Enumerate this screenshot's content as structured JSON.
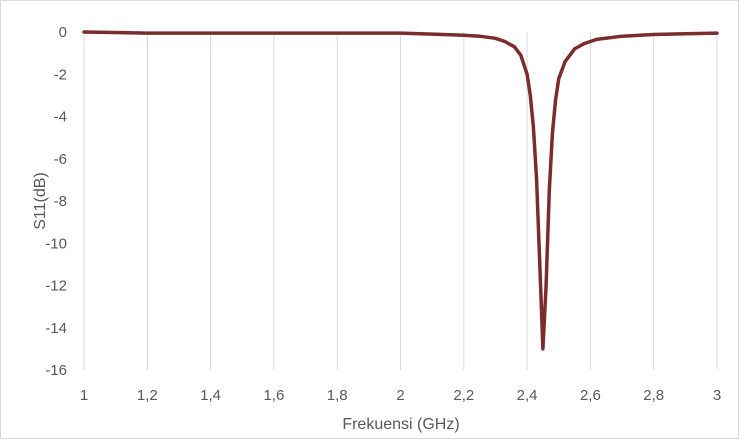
{
  "chart_data": {
    "type": "line",
    "title": "",
    "xlabel": "Frekuensi (GHz)",
    "ylabel": "S11(dB)",
    "xlim": [
      1,
      3
    ],
    "ylim": [
      -16,
      0
    ],
    "x_ticks": [
      "1",
      "1,2",
      "1,4",
      "1,6",
      "1,8",
      "2",
      "2,2",
      "2,4",
      "2,6",
      "2,8",
      "3"
    ],
    "y_ticks": [
      "0",
      "-2",
      "-4",
      "-6",
      "-8",
      "-10",
      "-12",
      "-14",
      "-16"
    ],
    "grid": "vertical",
    "legend": "none",
    "series": [
      {
        "color": "#7b2c2c",
        "x": [
          1.0,
          1.2,
          1.4,
          1.6,
          1.8,
          2.0,
          2.1,
          2.2,
          2.25,
          2.3,
          2.33,
          2.36,
          2.38,
          2.4,
          2.41,
          2.42,
          2.43,
          2.44,
          2.45,
          2.46,
          2.47,
          2.48,
          2.49,
          2.5,
          2.52,
          2.55,
          2.58,
          2.62,
          2.7,
          2.8,
          2.9,
          3.0
        ],
        "y": [
          0.0,
          -0.05,
          -0.05,
          -0.05,
          -0.05,
          -0.05,
          -0.1,
          -0.15,
          -0.2,
          -0.3,
          -0.45,
          -0.7,
          -1.1,
          -2.0,
          -3.0,
          -4.5,
          -7.0,
          -11.0,
          -15.0,
          -12.0,
          -7.5,
          -4.8,
          -3.2,
          -2.2,
          -1.4,
          -0.8,
          -0.55,
          -0.35,
          -0.2,
          -0.12,
          -0.08,
          -0.05
        ]
      }
    ]
  }
}
